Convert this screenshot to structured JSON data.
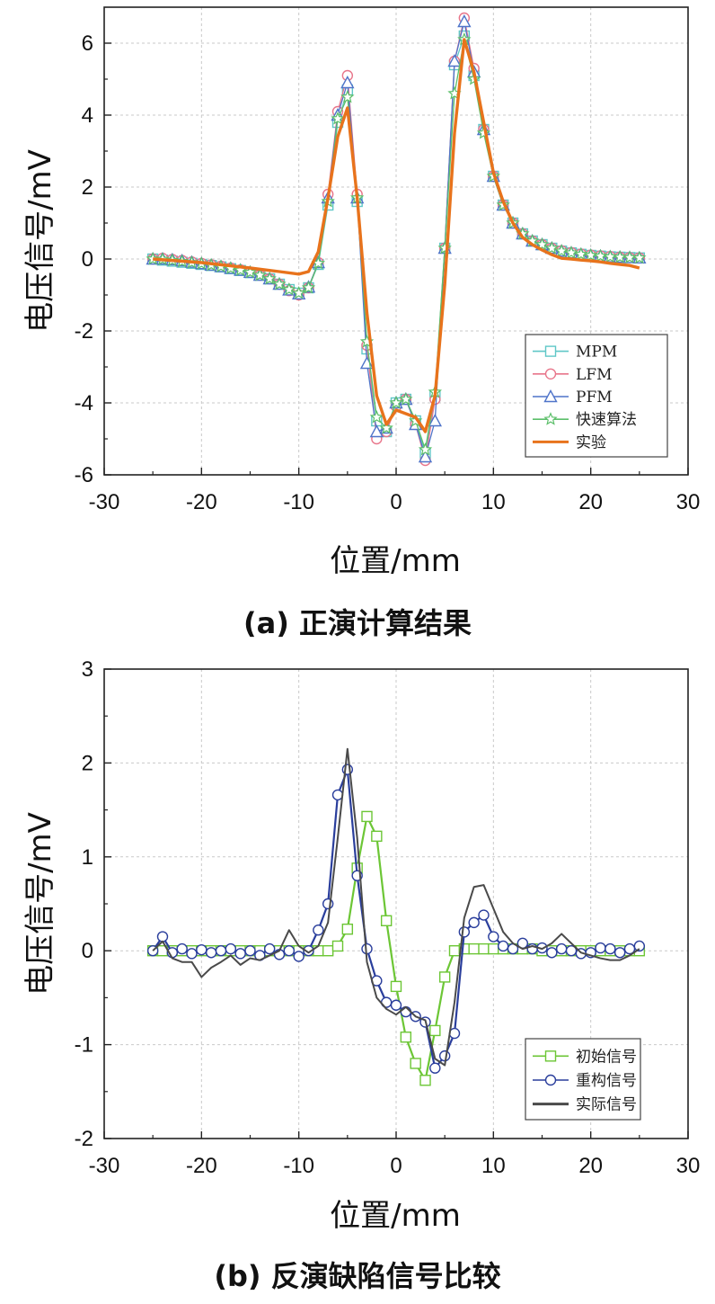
{
  "chart_data": [
    {
      "type": "line",
      "caption": "(a) 正演计算结果",
      "xlabel": "位置/mm",
      "ylabel": "电压信号/mV",
      "xlim": [
        -30,
        30
      ],
      "ylim": [
        -6,
        7
      ],
      "xticks": [
        -30,
        -20,
        -10,
        0,
        10,
        20,
        30
      ],
      "yticks": [
        -6,
        -4,
        -2,
        0,
        2,
        4,
        6
      ],
      "grid": true,
      "legend_position": "bottom-right",
      "series": [
        {
          "name": "MPM",
          "color": "#5fc7c7",
          "marker": "square",
          "x": [
            -25,
            -24,
            -23,
            -22,
            -21,
            -20,
            -19,
            -18,
            -17,
            -16,
            -15,
            -14,
            -13,
            -12,
            -11,
            -10,
            -9,
            -8,
            -7,
            -6,
            -5,
            -4,
            -3,
            -2,
            -1,
            0,
            1,
            2,
            3,
            4,
            5,
            6,
            7,
            8,
            9,
            10,
            11,
            12,
            13,
            14,
            15,
            16,
            17,
            18,
            19,
            20,
            21,
            22,
            23,
            24,
            25
          ],
          "y": [
            0.0,
            -0.03,
            -0.06,
            -0.09,
            -0.12,
            -0.15,
            -0.18,
            -0.22,
            -0.27,
            -0.32,
            -0.38,
            -0.45,
            -0.55,
            -0.7,
            -0.85,
            -0.95,
            -0.8,
            -0.15,
            1.5,
            3.8,
            4.7,
            1.6,
            -2.5,
            -4.5,
            -4.8,
            -4.0,
            -3.9,
            -4.5,
            -5.4,
            -3.8,
            0.3,
            5.4,
            6.2,
            5.1,
            3.6,
            2.3,
            1.5,
            1.0,
            0.7,
            0.5,
            0.4,
            0.3,
            0.22,
            0.17,
            0.13,
            0.1,
            0.08,
            0.06,
            0.05,
            0.04,
            0.03
          ]
        },
        {
          "name": "LFM",
          "color": "#e8758a",
          "marker": "circle",
          "x": [
            -25,
            -24,
            -23,
            -22,
            -21,
            -20,
            -19,
            -18,
            -17,
            -16,
            -15,
            -14,
            -13,
            -12,
            -11,
            -10,
            -9,
            -8,
            -7,
            -6,
            -5,
            -4,
            -3,
            -2,
            -1,
            0,
            1,
            2,
            3,
            4,
            5,
            6,
            7,
            8,
            9,
            10,
            11,
            12,
            13,
            14,
            15,
            16,
            17,
            18,
            19,
            20,
            21,
            22,
            23,
            24,
            25
          ],
          "y": [
            0.0,
            0.02,
            -0.01,
            -0.04,
            -0.08,
            -0.12,
            -0.16,
            -0.2,
            -0.25,
            -0.3,
            -0.37,
            -0.45,
            -0.55,
            -0.7,
            -0.88,
            -1.0,
            -0.8,
            -0.1,
            1.8,
            4.1,
            5.1,
            1.8,
            -2.4,
            -5.0,
            -4.8,
            -4.1,
            -3.9,
            -4.6,
            -5.6,
            -3.9,
            0.3,
            5.5,
            6.7,
            5.3,
            3.6,
            2.3,
            1.5,
            1.0,
            0.7,
            0.5,
            0.4,
            0.3,
            0.23,
            0.18,
            0.14,
            0.11,
            0.09,
            0.07,
            0.05,
            0.04,
            0.03
          ]
        },
        {
          "name": "PFM",
          "color": "#4f74c9",
          "marker": "triangle",
          "x": [
            -25,
            -24,
            -23,
            -22,
            -21,
            -20,
            -19,
            -18,
            -17,
            -16,
            -15,
            -14,
            -13,
            -12,
            -11,
            -10,
            -9,
            -8,
            -7,
            -6,
            -5,
            -4,
            -3,
            -2,
            -1,
            0,
            1,
            2,
            3,
            4,
            5,
            6,
            7,
            8,
            9,
            10,
            11,
            12,
            13,
            14,
            15,
            16,
            17,
            18,
            19,
            20,
            21,
            22,
            23,
            24,
            25
          ],
          "y": [
            0.0,
            0.0,
            -0.02,
            -0.05,
            -0.09,
            -0.13,
            -0.17,
            -0.21,
            -0.26,
            -0.31,
            -0.37,
            -0.45,
            -0.55,
            -0.7,
            -0.86,
            -0.97,
            -0.78,
            -0.1,
            1.7,
            4.0,
            4.9,
            1.7,
            -2.9,
            -4.8,
            -4.7,
            -4.0,
            -3.9,
            -4.6,
            -5.5,
            -4.5,
            0.3,
            5.5,
            6.6,
            5.2,
            3.6,
            2.3,
            1.5,
            1.0,
            0.7,
            0.5,
            0.4,
            0.3,
            0.22,
            0.17,
            0.13,
            0.1,
            0.08,
            0.06,
            0.05,
            0.04,
            0.03
          ]
        },
        {
          "name": "快速算法",
          "color": "#5cbf6a",
          "marker": "star",
          "x": [
            -25,
            -24,
            -23,
            -22,
            -21,
            -20,
            -19,
            -18,
            -17,
            -16,
            -15,
            -14,
            -13,
            -12,
            -11,
            -10,
            -9,
            -8,
            -7,
            -6,
            -5,
            -4,
            -3,
            -2,
            -1,
            0,
            1,
            2,
            3,
            4,
            5,
            6,
            7,
            8,
            9,
            10,
            11,
            12,
            13,
            14,
            15,
            16,
            17,
            18,
            19,
            20,
            21,
            22,
            23,
            24,
            25
          ],
          "y": [
            0.0,
            -0.01,
            -0.04,
            -0.07,
            -0.1,
            -0.13,
            -0.17,
            -0.21,
            -0.26,
            -0.31,
            -0.37,
            -0.45,
            -0.55,
            -0.7,
            -0.85,
            -0.95,
            -0.8,
            -0.12,
            1.6,
            3.9,
            4.5,
            1.7,
            -2.3,
            -4.4,
            -4.7,
            -4.0,
            -3.9,
            -4.5,
            -5.3,
            -3.7,
            0.3,
            4.6,
            6.1,
            5.0,
            3.5,
            2.3,
            1.5,
            1.0,
            0.7,
            0.5,
            0.4,
            0.3,
            0.22,
            0.17,
            0.13,
            0.1,
            0.08,
            0.06,
            0.05,
            0.04,
            0.03
          ]
        },
        {
          "name": "实验",
          "color": "#e8731c",
          "marker": "none",
          "x": [
            -25,
            -20,
            -15,
            -12,
            -10,
            -9,
            -8,
            -7,
            -6,
            -5,
            -4,
            -3,
            -2,
            -1,
            0,
            1,
            2,
            3,
            4,
            5,
            6,
            7,
            8,
            9,
            10,
            11,
            12,
            13,
            14,
            15,
            16,
            17,
            18,
            19,
            20,
            21,
            22,
            23,
            24,
            25
          ],
          "y": [
            0.0,
            -0.1,
            -0.25,
            -0.35,
            -0.42,
            -0.35,
            0.2,
            1.7,
            3.4,
            4.2,
            1.7,
            -1.5,
            -3.8,
            -4.6,
            -4.2,
            -4.3,
            -4.4,
            -4.8,
            -3.8,
            -0.7,
            3.5,
            6.1,
            5.2,
            3.8,
            2.4,
            1.6,
            1.0,
            0.6,
            0.4,
            0.25,
            0.12,
            0.02,
            0.0,
            -0.03,
            -0.05,
            -0.08,
            -0.12,
            -0.15,
            -0.18,
            -0.25
          ]
        }
      ]
    },
    {
      "type": "line",
      "caption": "(b) 反演缺陷信号比较",
      "xlabel": "位置/mm",
      "ylabel": "电压信号/mV",
      "xlim": [
        -30,
        30
      ],
      "ylim": [
        -2,
        3
      ],
      "xticks": [
        -30,
        -20,
        -10,
        0,
        10,
        20,
        30
      ],
      "yticks": [
        -2,
        -1,
        0,
        1,
        2,
        3
      ],
      "grid": true,
      "legend_position": "bottom-right",
      "series": [
        {
          "name": "初始信号",
          "color": "#6cc635",
          "marker": "square",
          "x": [
            -25,
            -24,
            -23,
            -22,
            -21,
            -20,
            -19,
            -18,
            -17,
            -16,
            -15,
            -14,
            -13,
            -12,
            -11,
            -10,
            -9,
            -8,
            -7,
            -6,
            -5,
            -4,
            -3,
            -2,
            -1,
            0,
            1,
            2,
            3,
            4,
            5,
            6,
            7,
            8,
            9,
            10,
            11,
            12,
            13,
            14,
            15,
            16,
            17,
            18,
            19,
            20,
            21,
            22,
            23,
            24,
            25
          ],
          "y": [
            0,
            0,
            0,
            0,
            0,
            0,
            0,
            0,
            0,
            0,
            0,
            0,
            0,
            0,
            0,
            0,
            0,
            0,
            0,
            0.05,
            0.23,
            0.88,
            1.43,
            1.22,
            0.32,
            -0.38,
            -0.92,
            -1.2,
            -1.38,
            -0.85,
            -0.28,
            0,
            0.02,
            0.02,
            0.02,
            0.02,
            0.02,
            0.02,
            0.02,
            0.02,
            0,
            0,
            0,
            0,
            0,
            0,
            0,
            0,
            0,
            0,
            0
          ]
        },
        {
          "name": "重构信号",
          "color": "#2a3e9c",
          "marker": "circle",
          "x": [
            -25,
            -24,
            -23,
            -22,
            -21,
            -20,
            -19,
            -18,
            -17,
            -16,
            -15,
            -14,
            -13,
            -12,
            -11,
            -10,
            -9,
            -8,
            -7,
            -6,
            -5,
            -4,
            -3,
            -2,
            -1,
            0,
            1,
            2,
            3,
            4,
            5,
            6,
            7,
            8,
            9,
            10,
            11,
            12,
            13,
            14,
            15,
            16,
            17,
            18,
            19,
            20,
            21,
            22,
            23,
            24,
            25
          ],
          "y": [
            0,
            0.15,
            -0.02,
            0.02,
            -0.03,
            0.01,
            -0.02,
            0,
            0.02,
            -0.03,
            0,
            -0.05,
            0.02,
            -0.04,
            0,
            -0.06,
            0,
            0.22,
            0.5,
            1.66,
            1.93,
            0.8,
            0.02,
            -0.32,
            -0.55,
            -0.58,
            -0.65,
            -0.7,
            -0.76,
            -1.25,
            -1.12,
            -0.88,
            0.2,
            0.3,
            0.38,
            0.15,
            0.05,
            0.02,
            0.08,
            0.02,
            0.03,
            -0.02,
            0.02,
            0,
            -0.03,
            -0.02,
            0.03,
            0.02,
            -0.02,
            0.02,
            0.05
          ]
        },
        {
          "name": "实际信号",
          "color": "#4a4a4a",
          "marker": "none",
          "x": [
            -25,
            -24,
            -23,
            -22,
            -21,
            -20,
            -19,
            -18,
            -17,
            -16,
            -15,
            -14,
            -13,
            -12,
            -11,
            -10,
            -9,
            -8,
            -7,
            -6,
            -5,
            -4,
            -3,
            -2,
            -1,
            0,
            1,
            2,
            3,
            4,
            5,
            6,
            7,
            8,
            9,
            10,
            11,
            12,
            13,
            14,
            15,
            16,
            17,
            18,
            19,
            20,
            21,
            22,
            23,
            24,
            25
          ],
          "y": [
            0,
            0.1,
            -0.08,
            -0.12,
            -0.12,
            -0.28,
            -0.18,
            -0.12,
            -0.05,
            -0.15,
            -0.08,
            -0.1,
            -0.05,
            0,
            0.22,
            0.05,
            -0.02,
            0.05,
            0.3,
            1.2,
            2.15,
            1.2,
            -0.12,
            -0.5,
            -0.62,
            -0.68,
            -0.6,
            -0.7,
            -0.74,
            -1.15,
            -1.22,
            -0.55,
            0.35,
            0.68,
            0.7,
            0.45,
            0.2,
            0.08,
            0.02,
            0.05,
            0.02,
            0.08,
            0.18,
            0.08,
            -0.02,
            -0.05,
            -0.08,
            -0.1,
            -0.1,
            -0.05,
            0.02
          ]
        }
      ]
    }
  ]
}
